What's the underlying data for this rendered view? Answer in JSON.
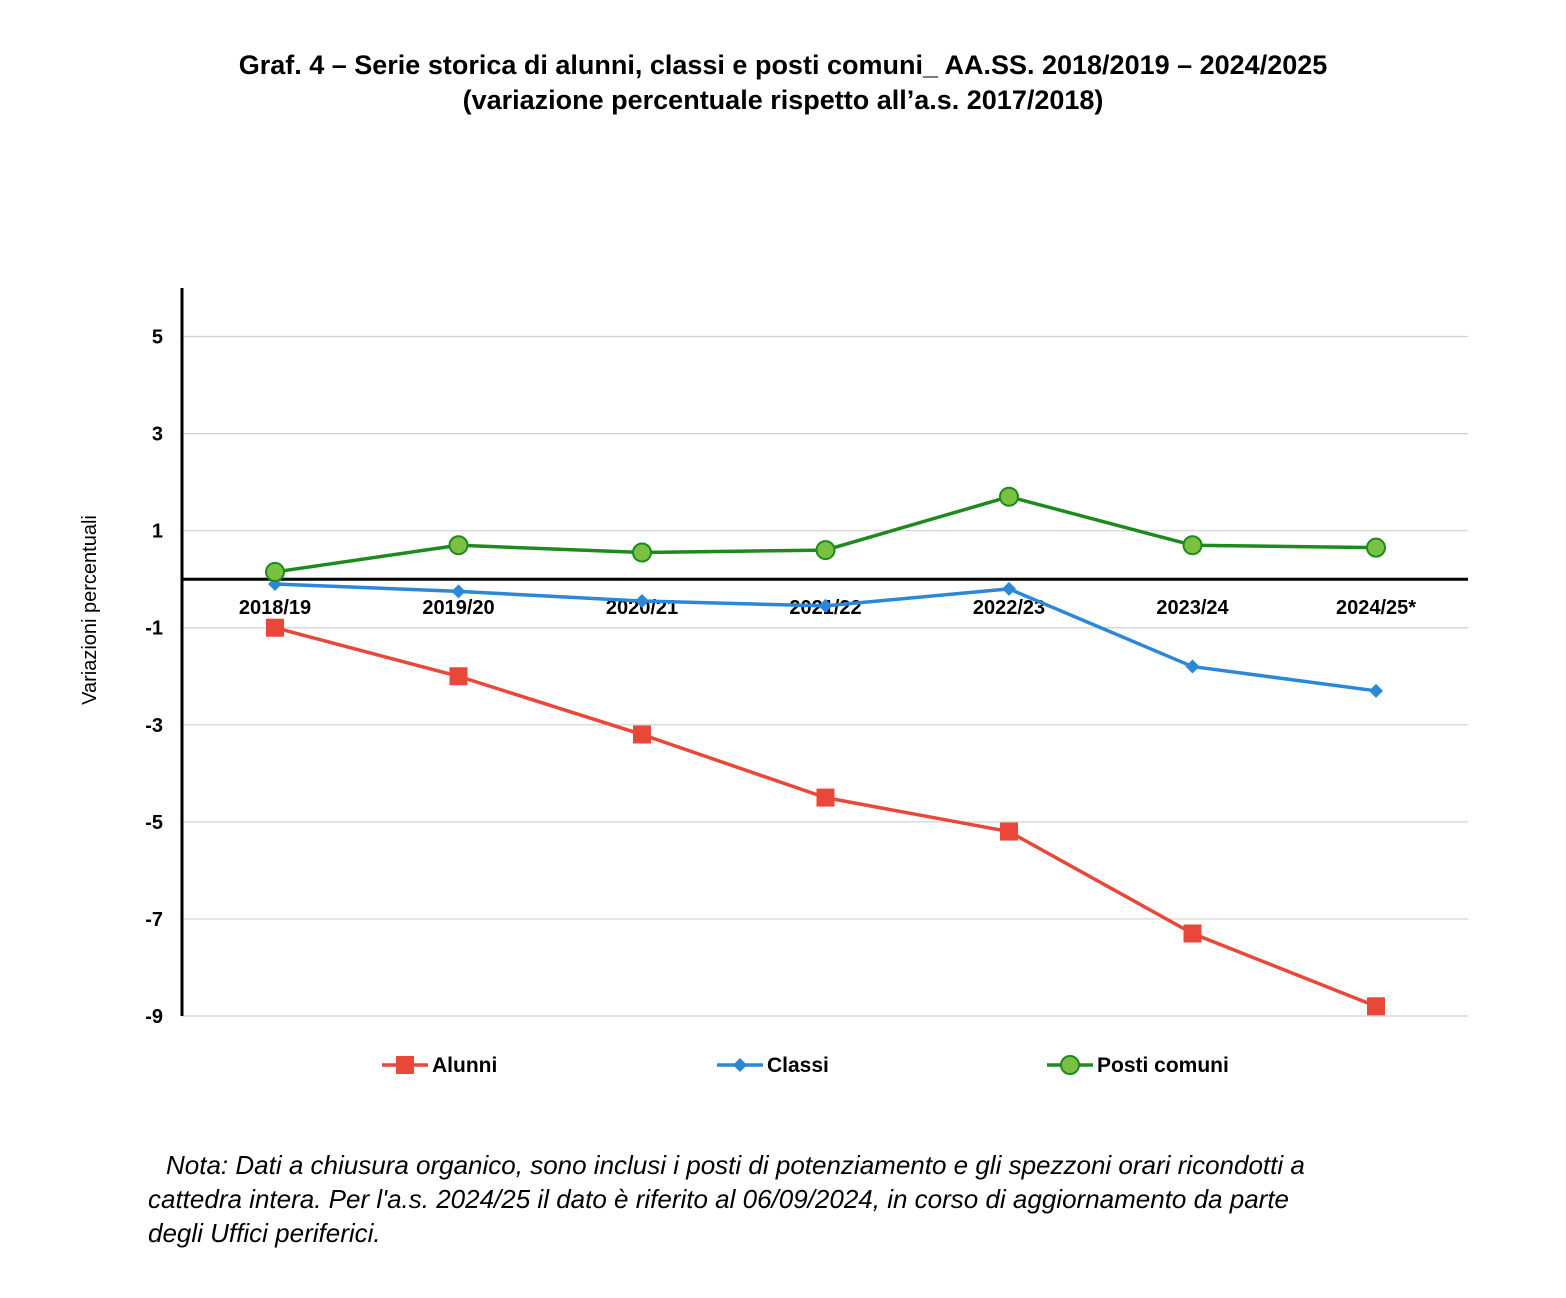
{
  "chart_data": {
    "type": "line",
    "title": "Graf. 4 – Serie storica di alunni, classi e posti comuni_ AA.SS. 2018/2019 – 2024/2025",
    "subtitle": "(variazione percentuale rispetto all’a.s. 2017/2018)",
    "xlabel": "",
    "ylabel": "Variazioni percentuali",
    "categories": [
      "2018/19",
      "2019/20",
      "2020/21",
      "2021/22",
      "2022/23",
      "2023/24",
      "2024/25*"
    ],
    "ylim": [
      -9,
      6
    ],
    "yticks": [
      5,
      3,
      1,
      -1,
      -3,
      -5,
      -7,
      -9
    ],
    "grid": true,
    "legend_position": "bottom",
    "series": [
      {
        "name": "Alunni",
        "color": "#e8473a",
        "marker": "square",
        "values": [
          -1.0,
          -2.0,
          -3.2,
          -4.5,
          -5.2,
          -7.3,
          -8.8
        ]
      },
      {
        "name": "Classi",
        "color": "#2b88d8",
        "marker": "diamond",
        "values": [
          -0.1,
          -0.25,
          -0.45,
          -0.55,
          -0.2,
          -1.8,
          -2.3
        ]
      },
      {
        "name": "Posti comuni",
        "color": "#1c8a1c",
        "marker": "circle",
        "marker_fill": "#7ac142",
        "values": [
          0.15,
          0.7,
          0.55,
          0.6,
          1.7,
          0.7,
          0.65
        ]
      }
    ]
  },
  "note": {
    "line1": "Nota: Dati a chiusura organico, sono inclusi i posti di potenziamento e gli spezzoni orari ricondotti a",
    "line2": "cattedra intera. Per l'a.s. 2024/25 il dato è riferito al 06/09/2024, in corso di aggiornamento da parte",
    "line3": "degli Uffici periferici."
  }
}
